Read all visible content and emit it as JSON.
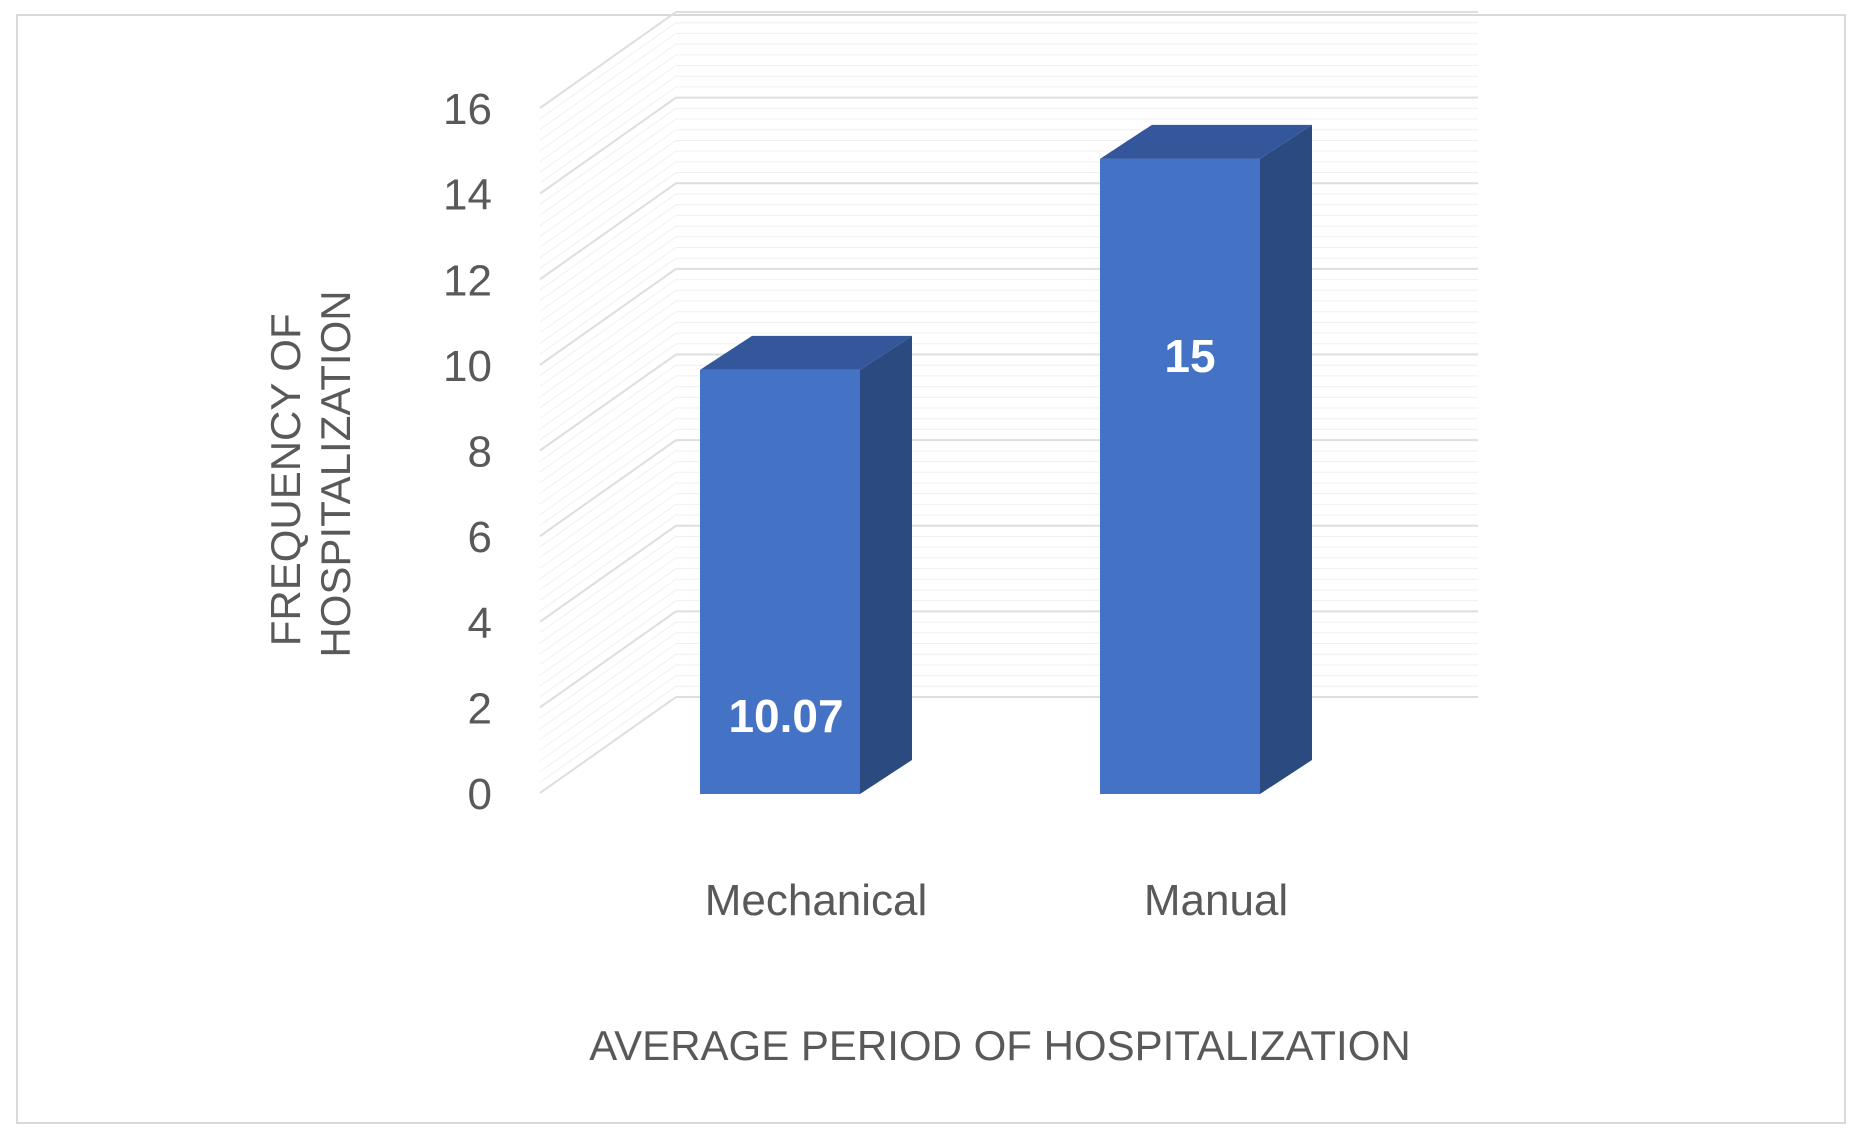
{
  "chart_data": {
    "type": "bar",
    "style": "3d-column",
    "categories": [
      "Mechanical",
      "Manual"
    ],
    "values": [
      10.07,
      15
    ],
    "data_labels": [
      "10.07",
      "15"
    ],
    "xlabel": "AVERAGE PERIOD OF HOSPITALIZATION",
    "ylabel_lines": [
      "FREQUENCY OF",
      "HOSPITALIZATION"
    ],
    "ylim": [
      0,
      16
    ],
    "yticks": [
      "0",
      "2",
      "4",
      "6",
      "8",
      "10",
      "12",
      "14",
      "16"
    ],
    "grid": true,
    "legend": "none",
    "colors": {
      "bar_front": "#4472c4",
      "bar_side": "#2b4a80",
      "bar_top": "#34569a",
      "grid": "#e3e3e3",
      "text": "#595959"
    }
  }
}
